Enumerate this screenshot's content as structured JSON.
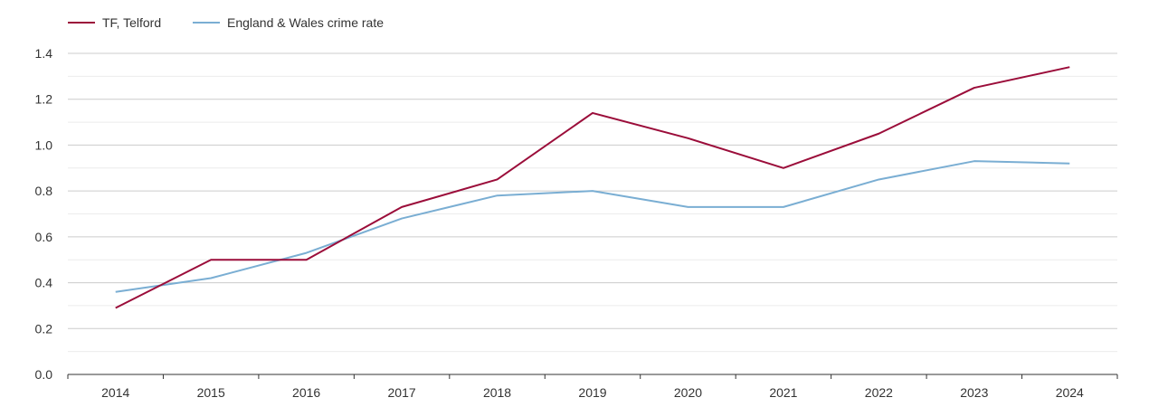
{
  "chart_data": {
    "type": "line",
    "title": "",
    "xlabel": "",
    "ylabel": "",
    "categories": [
      "2014",
      "2015",
      "2016",
      "2017",
      "2018",
      "2019",
      "2020",
      "2021",
      "2022",
      "2023",
      "2024"
    ],
    "y_ticks": [
      "0.0",
      "0.2",
      "0.4",
      "0.6",
      "0.8",
      "1.0",
      "1.2",
      "1.4"
    ],
    "ylim": [
      0,
      1.4
    ],
    "grid": true,
    "legend_position": "top-left",
    "series": [
      {
        "name": "TF, Telford",
        "color": "#9b0d3a",
        "values": [
          0.29,
          0.5,
          0.5,
          0.73,
          0.85,
          1.14,
          1.03,
          0.9,
          1.05,
          1.25,
          1.34
        ]
      },
      {
        "name": "England & Wales crime rate",
        "color": "#7aaed3",
        "values": [
          0.36,
          0.42,
          0.53,
          0.68,
          0.78,
          0.8,
          0.73,
          0.73,
          0.85,
          0.93,
          0.92
        ]
      }
    ]
  }
}
